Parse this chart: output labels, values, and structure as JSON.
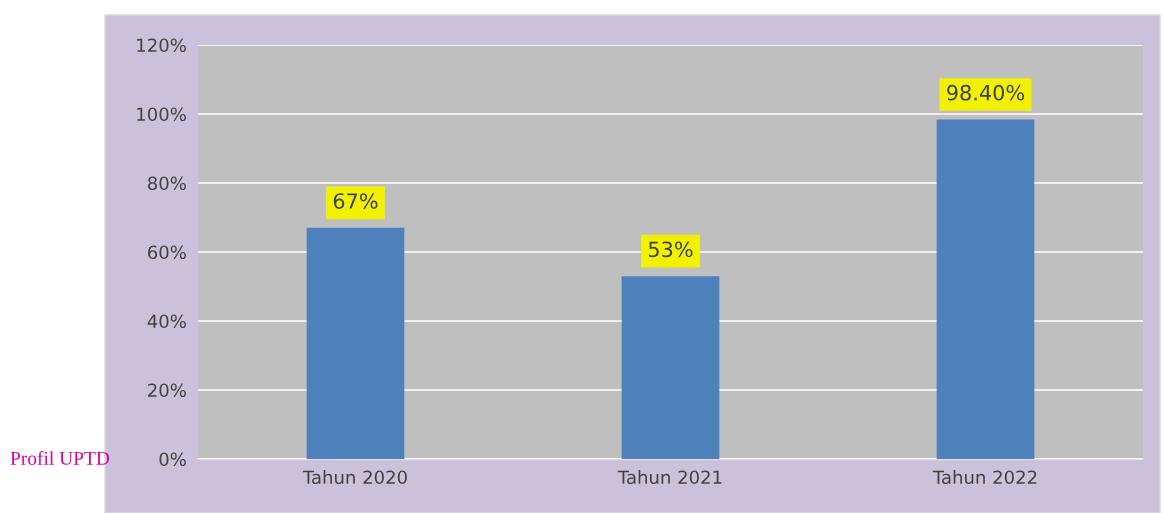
{
  "chart_data": {
    "type": "bar",
    "categories": [
      "Tahun 2020",
      "Tahun 2021",
      "Tahun 2022"
    ],
    "values": [
      67,
      53,
      98.4
    ],
    "value_labels": [
      "67%",
      "53%",
      "98.40%"
    ],
    "color": "#4f81bd",
    "ylim": [
      0,
      120
    ],
    "yticks": [
      {
        "value": 0,
        "label": "0%"
      },
      {
        "value": 20,
        "label": "20%"
      },
      {
        "value": 40,
        "label": "40%"
      },
      {
        "value": 60,
        "label": "60%"
      },
      {
        "value": 80,
        "label": "80%"
      },
      {
        "value": 100,
        "label": "100%"
      },
      {
        "value": 120,
        "label": "120%"
      }
    ],
    "grid": "y",
    "annotations": [
      "Profil UPTD"
    ]
  }
}
